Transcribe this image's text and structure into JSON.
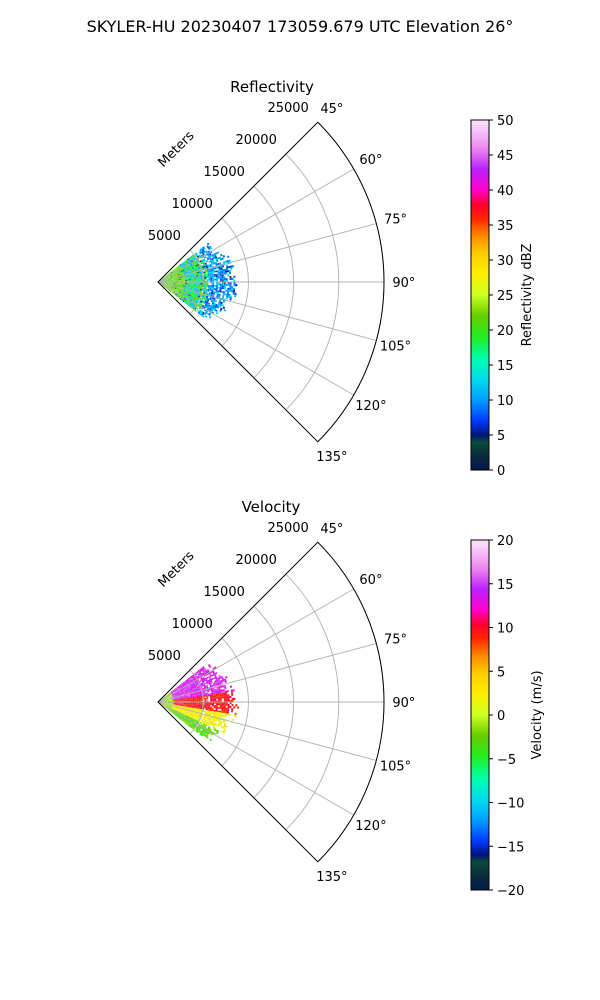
{
  "figure": {
    "suptitle": "SKYLER-HU  20230407  173059.679 UTC Elevation 26°"
  },
  "chart_data": [
    {
      "type": "heatmap",
      "projection": "polar-sector",
      "title": "Reflectivity",
      "radial_axis_label": "Meters",
      "radial_ticks": [
        5000,
        10000,
        15000,
        20000,
        25000
      ],
      "radial_tick_labels": [
        "5000",
        "10000",
        "15000",
        "20000",
        "25000"
      ],
      "radial_max": 25000,
      "angle_ticks_deg": [
        45,
        60,
        75,
        90,
        105,
        120,
        135
      ],
      "angle_tick_labels": [
        "45°",
        "60°",
        "75°",
        "90°",
        "105°",
        "120°",
        "135°"
      ],
      "angle_range_deg": [
        45,
        135
      ],
      "grid": true,
      "colorbar": {
        "label": "Reflectivity dBZ",
        "range": [
          0,
          50
        ],
        "ticks": [
          0,
          5,
          10,
          15,
          20,
          25,
          30,
          35,
          40,
          45,
          50
        ],
        "tick_labels": [
          "0",
          "5",
          "10",
          "15",
          "20",
          "25",
          "30",
          "35",
          "40",
          "45",
          "50"
        ],
        "colormap": "pyart_HomeyerRainbow"
      },
      "echo_extent_m": 9000,
      "echo_regions": [
        {
          "r_range_m": [
            0,
            3000
          ],
          "value_range": [
            19,
            24
          ],
          "color_hint": "#99dd22"
        },
        {
          "r_range_m": [
            3000,
            5500
          ],
          "value_range": [
            17,
            22
          ],
          "color_hint": "#55cc11"
        },
        {
          "r_range_m": [
            5500,
            9000
          ],
          "value_range": [
            8,
            13
          ],
          "color_hint": "#00ccee"
        }
      ]
    },
    {
      "type": "heatmap",
      "projection": "polar-sector",
      "title": "Velocity",
      "radial_axis_label": "Meters",
      "radial_ticks": [
        5000,
        10000,
        15000,
        20000,
        25000
      ],
      "radial_tick_labels": [
        "5000",
        "10000",
        "15000",
        "20000",
        "25000"
      ],
      "radial_max": 25000,
      "angle_ticks_deg": [
        45,
        60,
        75,
        90,
        105,
        120,
        135
      ],
      "angle_tick_labels": [
        "45°",
        "60°",
        "75°",
        "90°",
        "105°",
        "120°",
        "135°"
      ],
      "angle_range_deg": [
        45,
        135
      ],
      "grid": true,
      "colorbar": {
        "label": "Velocity (m/s)",
        "range": [
          -20,
          20
        ],
        "ticks": [
          -20,
          -15,
          -10,
          -5,
          0,
          5,
          10,
          15,
          20
        ],
        "tick_labels": [
          "−20",
          "−15",
          "−10",
          "−5",
          "0",
          "5",
          "10",
          "15",
          "20"
        ],
        "colormap": "pyart_HomeyerRainbow"
      },
      "echo_extent_m": 9000,
      "echo_regions": [
        {
          "azimuth_range_deg": [
            60,
            82
          ],
          "value_range": [
            12,
            16
          ],
          "color_hint": "#cc22ff"
        },
        {
          "azimuth_range_deg": [
            82,
            100
          ],
          "value_range": [
            8,
            11
          ],
          "color_hint": "#ff1100"
        },
        {
          "azimuth_range_deg": [
            100,
            115
          ],
          "value_range": [
            0,
            4
          ],
          "color_hint": "#ffcc00"
        },
        {
          "azimuth_range_deg": [
            115,
            125
          ],
          "value_range": [
            -5,
            -1
          ],
          "color_hint": "#99dd22"
        }
      ]
    }
  ]
}
